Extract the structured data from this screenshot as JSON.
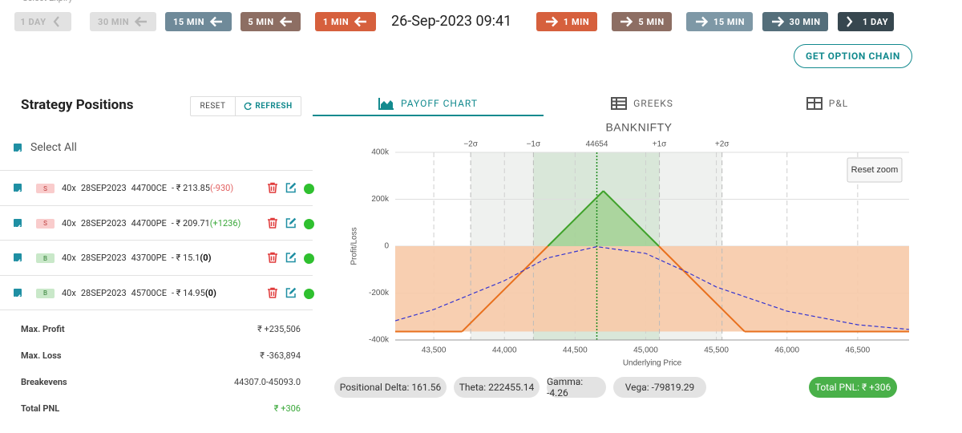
{
  "header": {
    "expiry_label": "Select Expiry",
    "back_buttons": [
      "1 DAY",
      "30 MIN",
      "15 MIN",
      "5 MIN",
      "1 MIN"
    ],
    "datetime": "26-Sep-2023 09:41",
    "forward_buttons": [
      "1 MIN",
      "5 MIN",
      "15 MIN",
      "30 MIN",
      "1 DAY"
    ],
    "option_chain_button": "GET OPTION CHAIN"
  },
  "positions_panel": {
    "title": "Strategy Positions",
    "reset": "RESET",
    "refresh": "REFRESH",
    "select_all": "Select All",
    "rows": [
      {
        "side": "S",
        "qty": "40x",
        "expiry": "28SEP2023",
        "instrument": "44700CE",
        "price": "- ₹ 213.85",
        "pnl": "(-930)"
      },
      {
        "side": "S",
        "qty": "40x",
        "expiry": "28SEP2023",
        "instrument": "44700PE",
        "price": "- ₹ 209.71",
        "pnl": "(+1236)"
      },
      {
        "side": "B",
        "qty": "40x",
        "expiry": "28SEP2023",
        "instrument": "43700PE",
        "price": "- ₹ 15.1",
        "pnl": "(0)"
      },
      {
        "side": "B",
        "qty": "40x",
        "expiry": "28SEP2023",
        "instrument": "45700CE",
        "price": "- ₹ 14.95",
        "pnl": "(0)"
      }
    ],
    "summary": [
      {
        "label": "Max. Profit",
        "value": "₹ +235,506"
      },
      {
        "label": "Max. Loss",
        "value": "₹ -363,894"
      },
      {
        "label": "Breakevens",
        "value": "44307.0-45093.0"
      },
      {
        "label": "Total PNL",
        "value": "₹ +306"
      }
    ]
  },
  "tabs": [
    "PAYOFF CHART",
    "GREEKS",
    "P&L"
  ],
  "chart_data": {
    "type": "line",
    "title": "BANKNIFTY",
    "x_label": "Underlying Price",
    "y_label": "Profit/Loss",
    "reset_zoom": "Reset zoom",
    "xlim": [
      43227,
      46864
    ],
    "ylim": [
      -400000,
      400000
    ],
    "xticks": [
      {
        "value": 43500,
        "label": "43,500"
      },
      {
        "value": 44000,
        "label": "44,000"
      },
      {
        "value": 44500,
        "label": "44,500"
      },
      {
        "value": 45000,
        "label": "45,000"
      },
      {
        "value": 45500,
        "label": "45,500"
      },
      {
        "value": 46000,
        "label": "46,000"
      },
      {
        "value": 46500,
        "label": "46,500"
      }
    ],
    "yticks": [
      {
        "value": -400000,
        "label": "-400k"
      },
      {
        "value": -200000,
        "label": "-200k"
      },
      0,
      {
        "value": 200000,
        "label": "200k"
      },
      {
        "value": 400000,
        "label": "400k"
      }
    ],
    "sigma_lines": [
      {
        "label": "−2σ",
        "x": 43761
      },
      {
        "label": "−1σ",
        "x": 44205
      },
      {
        "label": "+1σ",
        "x": 45097
      },
      {
        "label": "+2σ",
        "x": 45540
      }
    ],
    "spot": 44654,
    "series": [
      {
        "color": "#e8701e",
        "positive_color": "#3fa22a",
        "dashed": false,
        "x": [
          43227,
          43700,
          44307,
          44700,
          45093,
          45700,
          46864
        ],
        "values": [
          -363894,
          -363894,
          0,
          235506,
          0,
          -363894,
          -363894
        ]
      },
      {
        "color": "#3535d0",
        "dashed": true,
        "x": [
          43227,
          43500,
          44000,
          44300,
          44654,
          45000,
          45300,
          45500,
          46000,
          46500,
          46864
        ],
        "values": [
          -318000,
          -270000,
          -147000,
          -51000,
          -2000,
          -31000,
          -113000,
          -174000,
          -277000,
          -335000,
          -355000
        ]
      }
    ]
  },
  "greeks": [
    "Positional Delta: 161.56",
    "Theta: 222455.14",
    "Gamma: -4.26",
    "Vega: -79819.29"
  ],
  "total_pnl": "Total PNL: ₹ +306"
}
